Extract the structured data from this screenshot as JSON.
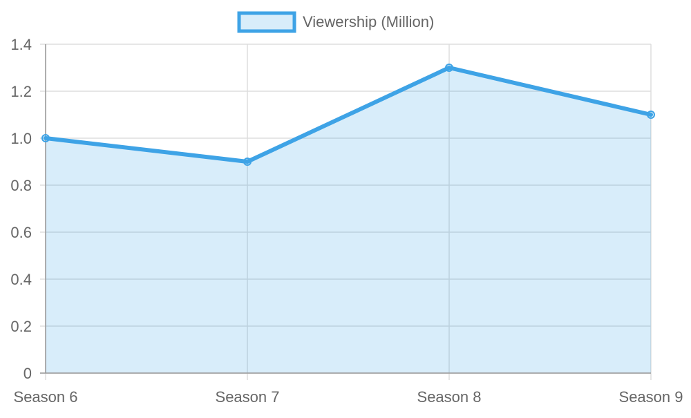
{
  "chart_data": {
    "type": "area",
    "categories": [
      "Season 6",
      "Season 7",
      "Season 8",
      "Season 9"
    ],
    "series": [
      {
        "name": "Viewership (Million)",
        "values": [
          1.0,
          0.9,
          1.3,
          1.1
        ]
      }
    ],
    "ylim": [
      0,
      1.4
    ],
    "yticks": [
      "0",
      "0.2",
      "0.4",
      "0.6",
      "0.8",
      "1.0",
      "1.2",
      "1.4"
    ],
    "grid": true,
    "legend_position": "top"
  },
  "colors": {
    "line": "#3ea3e6",
    "fill": "rgba(62,163,230,0.2)",
    "grid": "#dddddd",
    "axis": "#999999",
    "text": "#666666"
  }
}
